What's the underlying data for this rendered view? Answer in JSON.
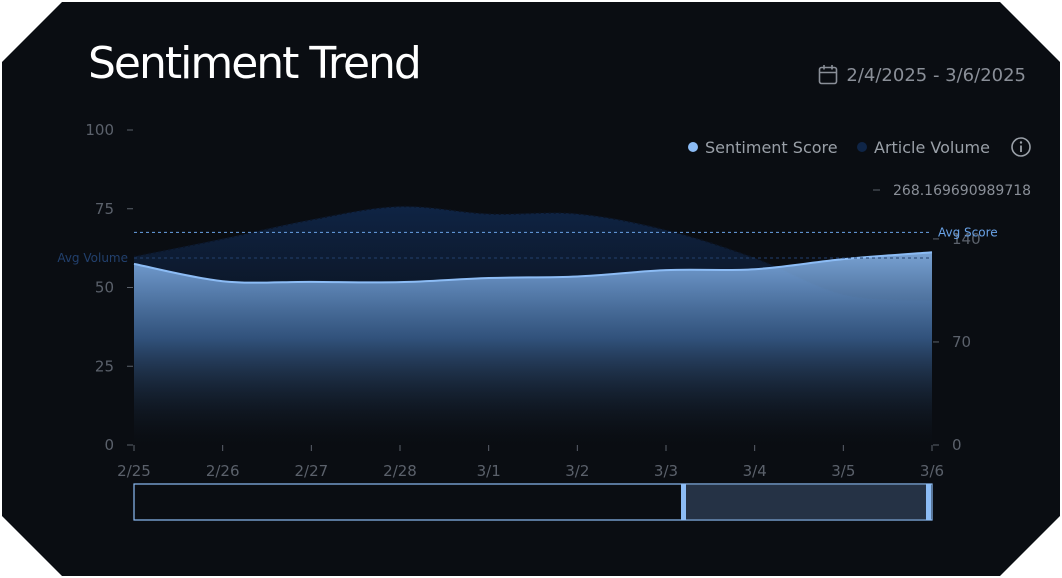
{
  "title": "Sentiment Trend",
  "date_range": "2/4/2025 - 3/6/2025",
  "legend": {
    "sentiment": "Sentiment Score",
    "volume": "Article Volume"
  },
  "reference_lines": {
    "avg_score_label": "Avg Score",
    "avg_volume_label": "Avg Volume"
  },
  "right_axis_top_value": "268.169690989718",
  "colors": {
    "background": "#0a0d12",
    "sentiment": "#8cbcf5",
    "volume": "#0f2547",
    "avg_score": "#6aa3e8",
    "avg_volume": "#22406d"
  },
  "icons": {
    "date": "calendar-icon",
    "info": "info-icon"
  },
  "chart_data": {
    "type": "area",
    "x": [
      "2/25",
      "2/26",
      "2/27",
      "2/28",
      "3/1",
      "3/2",
      "3/3",
      "3/4",
      "3/5",
      "3/6"
    ],
    "series": [
      {
        "name": "Sentiment Score",
        "axis": "left",
        "values": [
          57.5,
          52,
          51.8,
          51.7,
          53,
          53.5,
          55.5,
          55.8,
          59,
          61.2
        ]
      },
      {
        "name": "Article Volume",
        "axis": "right",
        "values": [
          128,
          140,
          153,
          162,
          157,
          157,
          146,
          127,
          102,
          98
        ]
      }
    ],
    "reference_lines": [
      {
        "label": "Avg Score",
        "axis": "left",
        "value": 67.5
      },
      {
        "label": "Avg Volume",
        "axis": "right",
        "value": 127
      }
    ],
    "y_left": {
      "ticks": [
        0,
        25,
        50,
        75,
        100
      ],
      "ylim": [
        0,
        100
      ]
    },
    "y_right": {
      "ticks": [
        0,
        70,
        140
      ],
      "ylim": [
        0,
        214
      ],
      "top_label": "268.169690989718"
    },
    "brush": {
      "start": "3/3",
      "end": "3/6"
    },
    "legend_position": "top-right",
    "grid": false
  }
}
